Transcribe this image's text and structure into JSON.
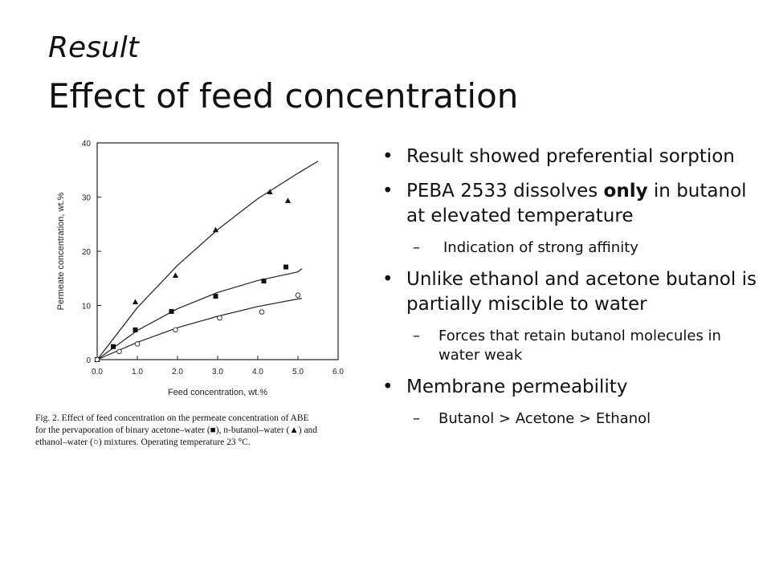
{
  "slide": {
    "title_line1": "Result",
    "title_line2": "Effect of feed concentration"
  },
  "figure": {
    "caption_lines": [
      "Fig. 2.  Effect of feed concentration on the permeate concentration of ABE",
      "for the pervaporation of binary acetone–water (■), n-butanol–water (▲) and",
      "ethanol–water (○) mixtures. Operating temperature 23 °C."
    ]
  },
  "chart_data": {
    "type": "scatter",
    "xlabel": "Feed concentration, wt.%",
    "ylabel": "Permeate concentration, wt.%",
    "xlim": [
      0,
      6
    ],
    "ylim": [
      0,
      40
    ],
    "xticks": [
      "0.0",
      "1.0",
      "2.0",
      "3.0",
      "4.0",
      "5.0",
      "6.0"
    ],
    "yticks": [
      "0",
      "10",
      "20",
      "30",
      "40"
    ],
    "grid": false,
    "series": [
      {
        "name": "n-butanol–water",
        "marker": "triangle",
        "points": [
          [
            0,
            0
          ],
          [
            0.95,
            10.6
          ],
          [
            1.95,
            15.5
          ],
          [
            2.95,
            23.9
          ],
          [
            4.3,
            30.9
          ],
          [
            4.75,
            29.3
          ]
        ],
        "fit_curve": [
          [
            0,
            0
          ],
          [
            1,
            9.6
          ],
          [
            2,
            17.4
          ],
          [
            3,
            24.0
          ],
          [
            4,
            29.7
          ],
          [
            5,
            34.4
          ],
          [
            5.5,
            36.6
          ]
        ]
      },
      {
        "name": "acetone–water",
        "marker": "square",
        "points": [
          [
            0,
            0
          ],
          [
            0.4,
            2.4
          ],
          [
            0.95,
            5.5
          ],
          [
            1.85,
            8.9
          ],
          [
            2.95,
            11.7
          ],
          [
            4.15,
            14.5
          ],
          [
            4.7,
            17.1
          ]
        ],
        "fit_curve": [
          [
            0,
            0
          ],
          [
            1,
            5.4
          ],
          [
            2,
            9.4
          ],
          [
            3,
            12.4
          ],
          [
            4,
            14.6
          ],
          [
            5,
            16.2
          ],
          [
            5.1,
            16.8
          ]
        ]
      },
      {
        "name": "ethanol–water",
        "marker": "circle",
        "points": [
          [
            0,
            0
          ],
          [
            0.55,
            1.5
          ],
          [
            1.0,
            2.9
          ],
          [
            1.95,
            5.5
          ],
          [
            3.05,
            7.7
          ],
          [
            4.1,
            8.8
          ],
          [
            5.0,
            11.9
          ]
        ],
        "fit_curve": [
          [
            0,
            0
          ],
          [
            1,
            3.2
          ],
          [
            2,
            5.9
          ],
          [
            3,
            8.0
          ],
          [
            4,
            9.8
          ],
          [
            5,
            11.2
          ],
          [
            5.1,
            11.3
          ]
        ]
      }
    ]
  },
  "bullets": [
    {
      "text": "Result showed preferential sorption",
      "sub": []
    },
    {
      "pre": "PEBA 2533 dissolves ",
      "bold": "only",
      "post": " in butanol at elevated temperature",
      "sub": [
        " Indication of strong affinity"
      ]
    },
    {
      "text": "Unlike ethanol and acetone butanol is partially miscible to water",
      "sub": [
        "Forces that retain butanol molecules in water weak"
      ]
    },
    {
      "text": "Membrane permeability",
      "sub": [
        "Butanol > Acetone > Ethanol"
      ]
    }
  ],
  "bullet_mark": "•",
  "sub_mark": "–"
}
